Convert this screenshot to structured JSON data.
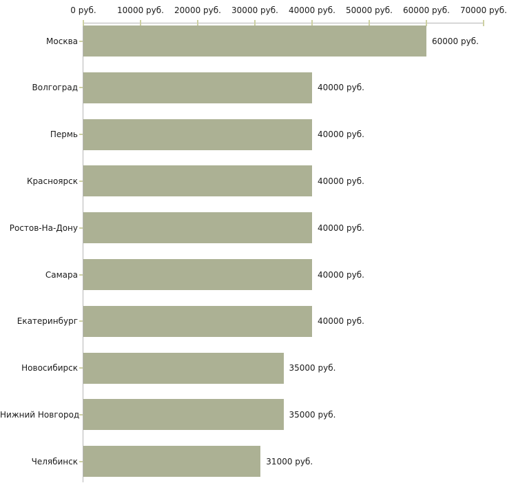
{
  "chart_data": {
    "type": "bar",
    "orientation": "horizontal",
    "title": "",
    "xlabel": "",
    "ylabel": "",
    "unit": "руб.",
    "categories": [
      "Москва",
      "Волгоград",
      "Пермь",
      "Красноярск",
      "Ростов-На-Дону",
      "Самара",
      "Екатеринбург",
      "Новосибирск",
      "Нижний Новгород",
      "Челябинск"
    ],
    "values": [
      60000,
      40000,
      40000,
      40000,
      40000,
      40000,
      40000,
      35000,
      35000,
      31000
    ],
    "value_labels": [
      "60000 руб.",
      "40000 руб.",
      "40000 руб.",
      "40000 руб.",
      "40000 руб.",
      "40000 руб.",
      "40000 руб.",
      "35000 руб.",
      "35000 руб.",
      "31000 руб."
    ],
    "x_tick_values": [
      0,
      10000,
      20000,
      30000,
      40000,
      50000,
      60000,
      70000
    ],
    "x_tick_labels": [
      "0 руб.",
      "10000 руб.",
      "20000 руб.",
      "30000 руб.",
      "40000 руб.",
      "50000 руб.",
      "60000 руб.",
      "70000 руб."
    ],
    "xlim": [
      0,
      70000
    ],
    "grid": false,
    "legend": false,
    "colors": {
      "bar": "#acb194",
      "axis_line": "#b5b5b5",
      "tick": "#cdd0a2",
      "text": "#1a1a1a",
      "background": "#ffffff"
    }
  }
}
